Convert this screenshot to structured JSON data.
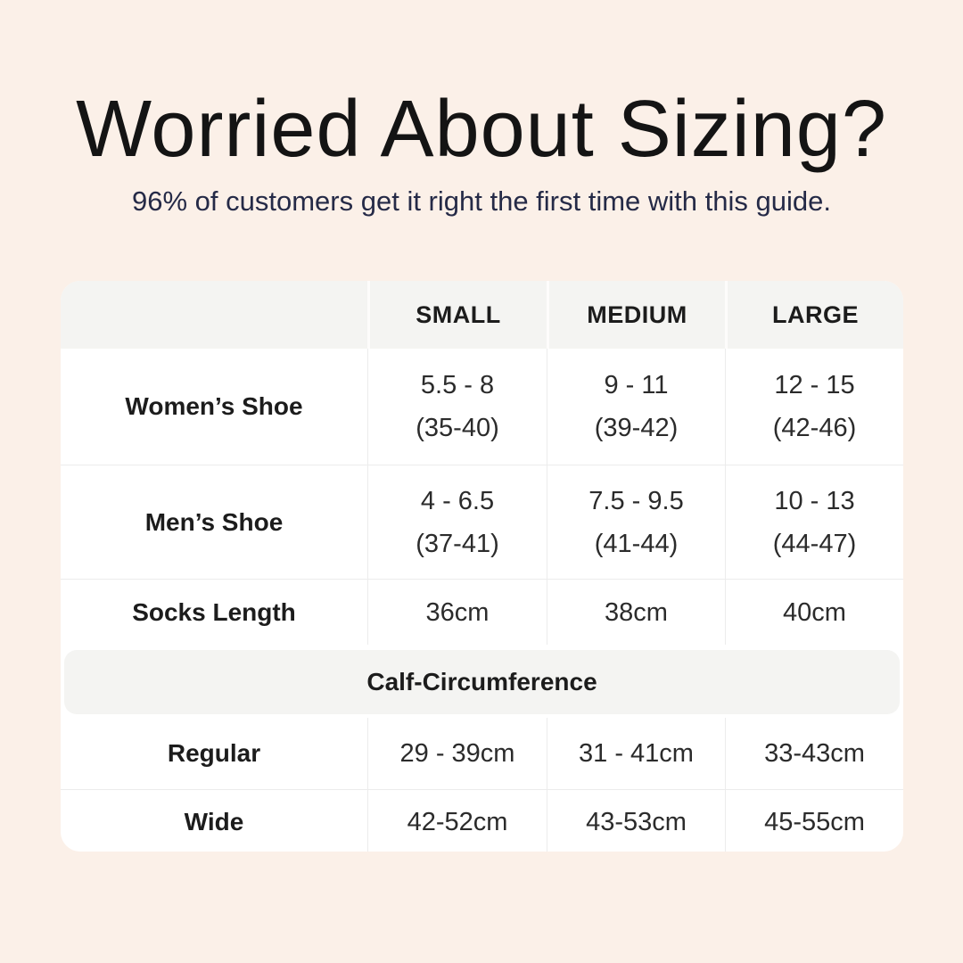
{
  "page": {
    "title": "Worried About Sizing?",
    "subtitle": "96% of customers get it right the first time with this guide."
  },
  "chart_data": {
    "type": "table",
    "title": "Worried About Sizing?",
    "subtitle": "96% of customers get it right the first time with this guide.",
    "column_headers": [
      "SMALL",
      "MEDIUM",
      "LARGE"
    ],
    "shoe_rows": [
      {
        "label": "Women’s Shoe",
        "cells": [
          [
            "5.5 - 8",
            "(35-40)"
          ],
          [
            "9 - 11",
            "(39-42)"
          ],
          [
            "12 - 15",
            "(42-46)"
          ]
        ]
      },
      {
        "label": "Men’s Shoe",
        "cells": [
          [
            "4 - 6.5",
            "(37-41)"
          ],
          [
            "7.5 - 9.5",
            "(41-44)"
          ],
          [
            "10 - 13",
            "(44-47)"
          ]
        ]
      },
      {
        "label": "Socks Length",
        "cells": [
          [
            "36cm"
          ],
          [
            "38cm"
          ],
          [
            "40cm"
          ]
        ]
      }
    ],
    "section_header": "Calf-Circumference",
    "calf_rows": [
      {
        "label": "Regular",
        "cells": [
          [
            "29 - 39cm"
          ],
          [
            "31 - 41cm"
          ],
          [
            "33-43cm"
          ]
        ]
      },
      {
        "label": "Wide",
        "cells": [
          [
            "42-52cm"
          ],
          [
            "43-53cm"
          ],
          [
            "45-55cm"
          ]
        ]
      }
    ]
  },
  "colors": {
    "background": "#FBF0E8",
    "card": "#FFFFFF",
    "header_bg": "#F4F4F2",
    "divider": "#ECECEC",
    "title_text": "#141414",
    "subtitle_text": "#252A47",
    "body_text": "#2B2B2B"
  }
}
